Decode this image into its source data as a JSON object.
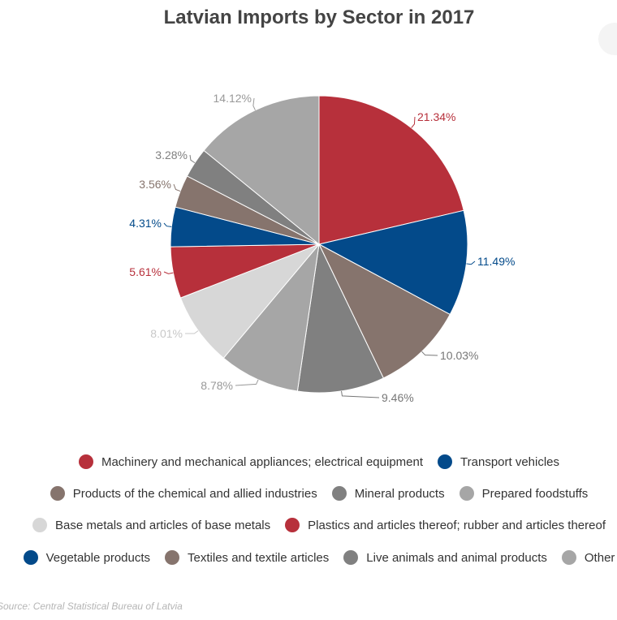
{
  "chart_data": {
    "type": "pie",
    "title": "Latvian Imports by Sector in 2017",
    "source": "Source: Central Statistical Bureau of Latvia",
    "slices": [
      {
        "label": "Machinery and mechanical appliances; electrical equipment",
        "value": 21.34,
        "display": "21.34%",
        "color": "#b7303b",
        "label_color": "#b7303b"
      },
      {
        "label": "Transport vehicles",
        "value": 11.49,
        "display": "11.49%",
        "color": "#034a8a",
        "label_color": "#034a8a"
      },
      {
        "label": "Products of the chemical and allied industries",
        "value": 10.03,
        "display": "10.03%",
        "color": "#86746d",
        "label_color": "#777777"
      },
      {
        "label": "Mineral products",
        "value": 9.46,
        "display": "9.46%",
        "color": "#808080",
        "label_color": "#777777"
      },
      {
        "label": "Prepared foodstuffs",
        "value": 8.78,
        "display": "8.78%",
        "color": "#a6a6a6",
        "label_color": "#999999"
      },
      {
        "label": "Base metals and articles of base metals",
        "value": 8.01,
        "display": "8.01%",
        "color": "#d7d7d7",
        "label_color": "#c8c8c8"
      },
      {
        "label": "Plastics and articles thereof; rubber and articles thereof",
        "value": 5.61,
        "display": "5.61%",
        "color": "#b7303b",
        "label_color": "#b7303b"
      },
      {
        "label": "Vegetable products",
        "value": 4.31,
        "display": "4.31%",
        "color": "#034a8a",
        "label_color": "#034a8a"
      },
      {
        "label": "Textiles and textile articles",
        "value": 3.56,
        "display": "3.56%",
        "color": "#86746d",
        "label_color": "#86746d"
      },
      {
        "label": "Live animals and animal products",
        "value": 3.28,
        "display": "3.28%",
        "color": "#808080",
        "label_color": "#808080"
      },
      {
        "label": "Other",
        "value": 14.12,
        "display": "14.12%",
        "color": "#a6a6a6",
        "label_color": "#999999"
      }
    ],
    "legend_rows": [
      [
        0,
        1
      ],
      [
        2,
        3,
        4
      ],
      [
        5,
        6
      ],
      [
        7,
        8,
        9,
        10
      ]
    ]
  }
}
